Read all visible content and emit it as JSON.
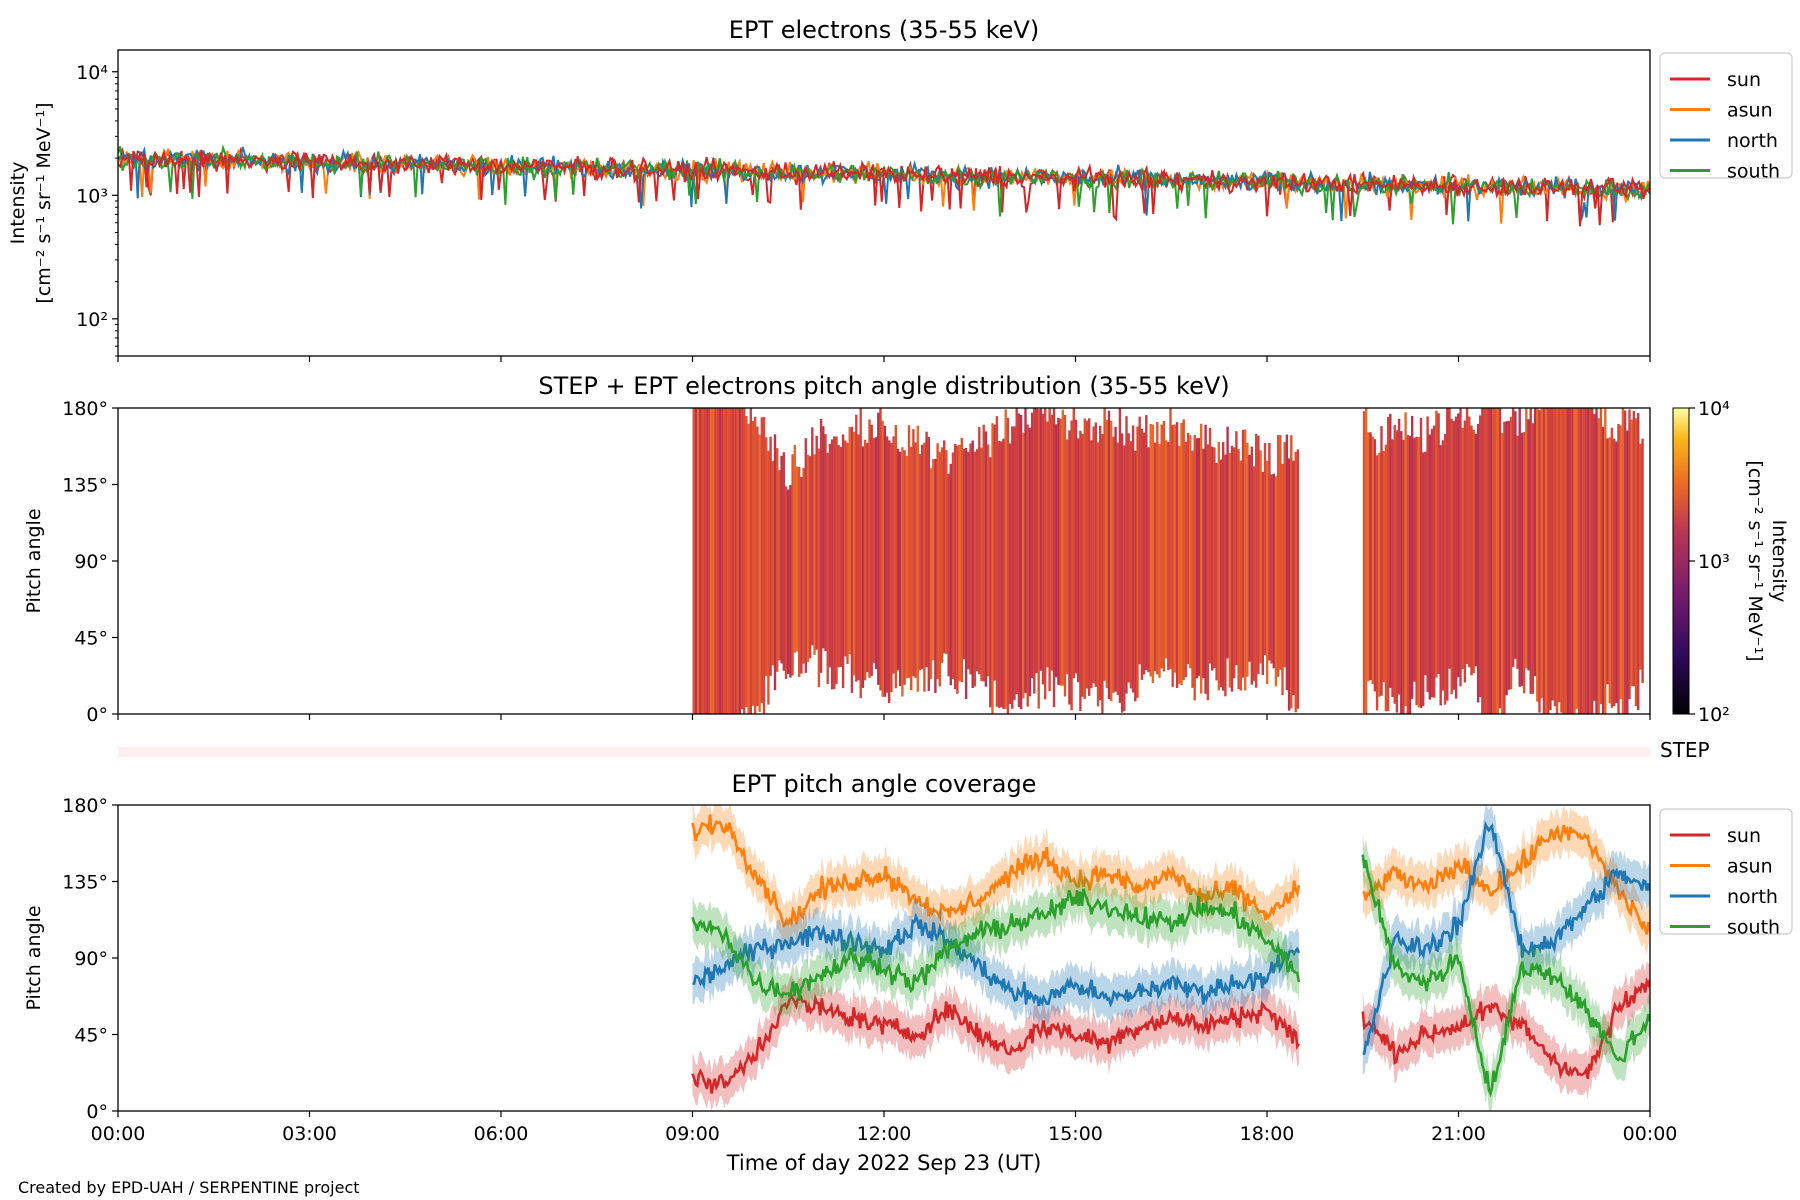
{
  "footer": {
    "credit": "Created by EPD-UAH / SERPENTINE project"
  },
  "colors": {
    "sun": "#d62728",
    "asun": "#ff7f0e",
    "north": "#1f77b4",
    "south": "#2ca02c"
  },
  "chart_data": [
    {
      "type": "line",
      "title": "EPT electrons (35-55 keV)",
      "ylabel_line1": "Intensity",
      "ylabel_line2": "[cm⁻² s⁻¹ sr⁻¹ MeV⁻¹]",
      "yscale": "log",
      "ylim": [
        50,
        15000
      ],
      "yticks": [
        {
          "label": "10²",
          "value": 100
        },
        {
          "label": "10³",
          "value": 1000
        },
        {
          "label": "10⁴",
          "value": 10000
        }
      ],
      "xlim_hours": [
        0,
        24
      ],
      "legend_position": "outside-right",
      "series": [
        {
          "name": "sun",
          "color": "#d62728",
          "start_value": 2000,
          "end_value": 1100
        },
        {
          "name": "asun",
          "color": "#ff7f0e",
          "start_value": 2000,
          "end_value": 1100
        },
        {
          "name": "north",
          "color": "#1f77b4",
          "start_value": 2000,
          "end_value": 1100
        },
        {
          "name": "south",
          "color": "#2ca02c",
          "start_value": 2000,
          "end_value": 1100
        }
      ]
    },
    {
      "type": "heatmap",
      "title": "STEP + EPT electrons pitch angle distribution (35-55 keV)",
      "ylabel": "Pitch angle",
      "ylim": [
        0,
        180
      ],
      "yticks": [
        "0°",
        "45°",
        "90°",
        "135°",
        "180°"
      ],
      "xlim_hours": [
        0,
        24
      ],
      "data_segments_hours": [
        [
          9.0,
          18.5
        ],
        [
          19.5,
          23.9
        ]
      ],
      "colorbar": {
        "label_line1": "Intensity",
        "label_line2": "[cm⁻² s⁻¹ sr⁻¹ MeV⁻¹]",
        "scale": "log",
        "range": [
          100,
          10000
        ],
        "ticks": [
          "10²",
          "10³",
          "10⁴"
        ],
        "colormap": "inferno"
      }
    },
    {
      "type": "heatmap",
      "label": "STEP",
      "note": "thin STEP strip, empty"
    },
    {
      "type": "line",
      "title": "EPT pitch angle coverage",
      "ylabel": "Pitch angle",
      "ylim": [
        0,
        180
      ],
      "yticks": [
        "0°",
        "45°",
        "90°",
        "135°",
        "180°"
      ],
      "xlabel": "Time of day 2022 Sep 23 (UT)",
      "xticks": [
        "00:00",
        "03:00",
        "06:00",
        "09:00",
        "12:00",
        "15:00",
        "18:00",
        "21:00",
        "00:00"
      ],
      "xlim_hours": [
        0,
        24
      ],
      "data_segments_hours": [
        [
          9.0,
          18.5
        ],
        [
          19.5,
          24.0
        ]
      ],
      "legend_position": "outside-right",
      "series": [
        {
          "name": "sun",
          "color": "#d62728",
          "points": [
            [
              9.0,
              20
            ],
            [
              9.5,
              15
            ],
            [
              10.0,
              35
            ],
            [
              10.5,
              65
            ],
            [
              11.0,
              60
            ],
            [
              11.5,
              55
            ],
            [
              12.0,
              50
            ],
            [
              12.5,
              45
            ],
            [
              13.0,
              60
            ],
            [
              13.5,
              45
            ],
            [
              14.0,
              35
            ],
            [
              14.5,
              50
            ],
            [
              15.0,
              45
            ],
            [
              15.5,
              40
            ],
            [
              16.0,
              50
            ],
            [
              16.5,
              55
            ],
            [
              17.0,
              50
            ],
            [
              17.5,
              55
            ],
            [
              18.0,
              60
            ],
            [
              18.5,
              40
            ],
            [
              19.5,
              55
            ],
            [
              20.0,
              35
            ],
            [
              20.5,
              45
            ],
            [
              21.0,
              50
            ],
            [
              21.5,
              60
            ],
            [
              22.0,
              50
            ],
            [
              22.5,
              30
            ],
            [
              23.0,
              20
            ],
            [
              23.5,
              60
            ],
            [
              24.0,
              75
            ]
          ]
        },
        {
          "name": "asun",
          "color": "#ff7f0e",
          "points": [
            [
              9.0,
              165
            ],
            [
              9.5,
              170
            ],
            [
              10.0,
              140
            ],
            [
              10.5,
              110
            ],
            [
              11.0,
              130
            ],
            [
              11.5,
              135
            ],
            [
              12.0,
              140
            ],
            [
              12.5,
              125
            ],
            [
              13.0,
              115
            ],
            [
              13.5,
              125
            ],
            [
              14.0,
              140
            ],
            [
              14.5,
              150
            ],
            [
              15.0,
              135
            ],
            [
              15.5,
              140
            ],
            [
              16.0,
              130
            ],
            [
              16.5,
              140
            ],
            [
              17.0,
              125
            ],
            [
              17.5,
              130
            ],
            [
              18.0,
              115
            ],
            [
              18.5,
              130
            ],
            [
              19.5,
              125
            ],
            [
              20.0,
              140
            ],
            [
              20.5,
              130
            ],
            [
              21.0,
              145
            ],
            [
              21.5,
              130
            ],
            [
              22.0,
              145
            ],
            [
              22.5,
              165
            ],
            [
              23.0,
              160
            ],
            [
              23.5,
              130
            ],
            [
              24.0,
              105
            ]
          ]
        },
        {
          "name": "north",
          "color": "#1f77b4",
          "points": [
            [
              9.0,
              75
            ],
            [
              9.5,
              85
            ],
            [
              10.0,
              95
            ],
            [
              10.5,
              100
            ],
            [
              11.0,
              105
            ],
            [
              11.5,
              100
            ],
            [
              12.0,
              95
            ],
            [
              12.5,
              110
            ],
            [
              13.0,
              100
            ],
            [
              13.5,
              85
            ],
            [
              14.0,
              70
            ],
            [
              14.5,
              65
            ],
            [
              15.0,
              75
            ],
            [
              15.5,
              65
            ],
            [
              16.0,
              70
            ],
            [
              16.5,
              75
            ],
            [
              17.0,
              70
            ],
            [
              17.5,
              75
            ],
            [
              18.0,
              80
            ],
            [
              18.5,
              95
            ],
            [
              19.5,
              30
            ],
            [
              20.0,
              100
            ],
            [
              20.5,
              95
            ],
            [
              21.0,
              110
            ],
            [
              21.5,
              170
            ],
            [
              22.0,
              95
            ],
            [
              22.5,
              100
            ],
            [
              23.0,
              120
            ],
            [
              23.5,
              140
            ],
            [
              24.0,
              130
            ]
          ]
        },
        {
          "name": "south",
          "color": "#2ca02c",
          "points": [
            [
              9.0,
              110
            ],
            [
              9.5,
              105
            ],
            [
              10.0,
              75
            ],
            [
              10.5,
              70
            ],
            [
              11.0,
              80
            ],
            [
              11.5,
              90
            ],
            [
              12.0,
              85
            ],
            [
              12.5,
              75
            ],
            [
              13.0,
              95
            ],
            [
              13.5,
              105
            ],
            [
              14.0,
              110
            ],
            [
              14.5,
              115
            ],
            [
              15.0,
              125
            ],
            [
              15.5,
              120
            ],
            [
              16.0,
              115
            ],
            [
              16.5,
              110
            ],
            [
              17.0,
              120
            ],
            [
              17.5,
              115
            ],
            [
              18.0,
              100
            ],
            [
              18.5,
              80
            ],
            [
              19.5,
              150
            ],
            [
              20.0,
              85
            ],
            [
              20.5,
              75
            ],
            [
              21.0,
              90
            ],
            [
              21.5,
              10
            ],
            [
              22.0,
              85
            ],
            [
              22.5,
              80
            ],
            [
              23.0,
              60
            ],
            [
              23.5,
              30
            ],
            [
              24.0,
              55
            ]
          ]
        }
      ]
    }
  ]
}
